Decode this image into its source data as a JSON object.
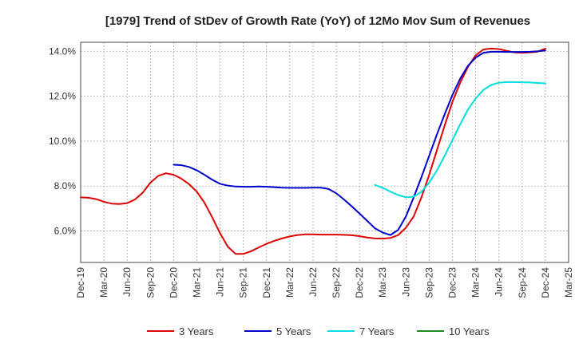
{
  "chart_data": {
    "type": "line",
    "title": "[1979]  Trend of StDev of Growth Rate (YoY) of 12Mo Mov Sum of Revenues",
    "xlabel": "",
    "ylabel": "",
    "ylim": [
      4.6,
      14.4
    ],
    "yticks": [
      6.0,
      8.0,
      10.0,
      12.0,
      14.0
    ],
    "ytick_labels": [
      "6.0%",
      "8.0%",
      "10.0%",
      "12.0%",
      "14.0%"
    ],
    "x_tick_labels": [
      "Dec-19",
      "Mar-20",
      "Jun-20",
      "Sep-20",
      "Dec-20",
      "Mar-21",
      "Jun-21",
      "Sep-21",
      "Dec-21",
      "Mar-22",
      "Jun-22",
      "Sep-22",
      "Dec-22",
      "Mar-23",
      "Jun-23",
      "Sep-23",
      "Dec-23",
      "Mar-24",
      "Jun-24",
      "Sep-24",
      "Dec-24",
      "Mar-25"
    ],
    "x_start": "Dec-19",
    "x_range_months": [
      0,
      63
    ],
    "grid": true,
    "legend_position": "bottom",
    "series": [
      {
        "name": "3 Years",
        "color": "#dd0000",
        "x": [
          0,
          1,
          2,
          3,
          4,
          5,
          6,
          7,
          8,
          9,
          10,
          11,
          12,
          13,
          14,
          15,
          16,
          17,
          18,
          19,
          20,
          21,
          22,
          23,
          24,
          25,
          26,
          27,
          28,
          29,
          30,
          31,
          32,
          33,
          34,
          35,
          36,
          37,
          38,
          39,
          40,
          41,
          42,
          43,
          44,
          45,
          46,
          47,
          48,
          49,
          50,
          51,
          52,
          53,
          54,
          55,
          56,
          57,
          58,
          59,
          60
        ],
        "values": [
          7.5,
          7.48,
          7.42,
          7.3,
          7.22,
          7.2,
          7.24,
          7.4,
          7.7,
          8.15,
          8.45,
          8.57,
          8.5,
          8.33,
          8.08,
          7.75,
          7.25,
          6.6,
          5.9,
          5.3,
          4.98,
          4.98,
          5.1,
          5.27,
          5.43,
          5.56,
          5.67,
          5.76,
          5.82,
          5.85,
          5.85,
          5.84,
          5.84,
          5.84,
          5.83,
          5.81,
          5.77,
          5.71,
          5.67,
          5.66,
          5.69,
          5.82,
          6.15,
          6.65,
          7.5,
          8.5,
          9.6,
          10.7,
          11.75,
          12.6,
          13.3,
          13.82,
          14.08,
          14.12,
          14.1,
          14.02,
          13.95,
          13.93,
          13.95,
          13.98,
          14.12
        ]
      },
      {
        "name": "5 Years",
        "color": "#0000cc",
        "x": [
          12,
          13,
          14,
          15,
          16,
          17,
          18,
          19,
          20,
          21,
          22,
          23,
          24,
          25,
          26,
          27,
          28,
          29,
          30,
          31,
          32,
          33,
          34,
          35,
          36,
          37,
          38,
          39,
          40,
          41,
          42,
          43,
          44,
          45,
          46,
          47,
          48,
          49,
          50,
          51,
          52,
          53,
          54,
          55,
          56,
          57,
          58,
          59,
          60
        ],
        "values": [
          8.95,
          8.93,
          8.85,
          8.7,
          8.5,
          8.28,
          8.1,
          8.02,
          7.98,
          7.97,
          7.97,
          7.98,
          7.97,
          7.95,
          7.93,
          7.92,
          7.92,
          7.92,
          7.93,
          7.93,
          7.87,
          7.68,
          7.4,
          7.1,
          6.78,
          6.45,
          6.12,
          5.93,
          5.82,
          6.05,
          6.65,
          7.5,
          8.4,
          9.35,
          10.3,
          11.2,
          12.05,
          12.78,
          13.35,
          13.72,
          13.93,
          13.98,
          13.98,
          13.97,
          13.97,
          13.97,
          13.98,
          14.0,
          14.03
        ]
      },
      {
        "name": "7 Years",
        "color": "#00dddd",
        "x": [
          38,
          39,
          40,
          41,
          42,
          43,
          44,
          45,
          46,
          47,
          48,
          49,
          50,
          51,
          52,
          53,
          54,
          55,
          56,
          57,
          58,
          59,
          60
        ],
        "values": [
          8.05,
          7.92,
          7.75,
          7.6,
          7.5,
          7.53,
          7.75,
          8.15,
          8.7,
          9.35,
          10.05,
          10.75,
          11.4,
          11.9,
          12.28,
          12.5,
          12.6,
          12.63,
          12.63,
          12.62,
          12.61,
          12.59,
          12.57
        ]
      },
      {
        "name": "10 Years",
        "color": "#228822",
        "x": [],
        "values": []
      }
    ]
  }
}
